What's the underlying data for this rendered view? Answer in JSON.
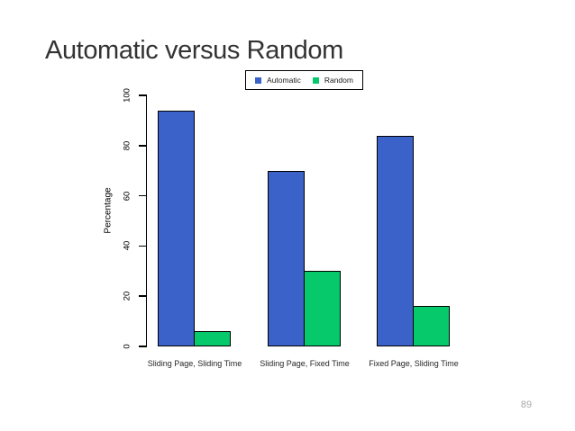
{
  "slide": {
    "title": "Automatic versus Random",
    "page_number": "89"
  },
  "legend": {
    "items": [
      {
        "label": "Automatic",
        "color": "#3a62c9"
      },
      {
        "label": "Random",
        "color": "#06c96b"
      }
    ]
  },
  "chart_data": {
    "type": "bar",
    "title": "",
    "categories": [
      "Sliding Page, Sliding Time",
      "Sliding Page, Fixed Time",
      "Fixed Page, Sliding Time"
    ],
    "series": [
      {
        "name": "Automatic",
        "color": "#3a62c9",
        "values": [
          94,
          70,
          84
        ]
      },
      {
        "name": "Random",
        "color": "#06c96b",
        "values": [
          6,
          30,
          16
        ]
      }
    ],
    "xlabel": "",
    "ylabel": "Percentage",
    "ylim": [
      0,
      100
    ],
    "yticks": [
      0,
      20,
      40,
      60,
      80,
      100
    ],
    "grid": false,
    "legend_position": "top",
    "bar_border_color": "#000000"
  },
  "colors": {
    "title": "#333333",
    "page_number": "#a9a9a9",
    "axis": "#000000",
    "background": "#ffffff"
  }
}
